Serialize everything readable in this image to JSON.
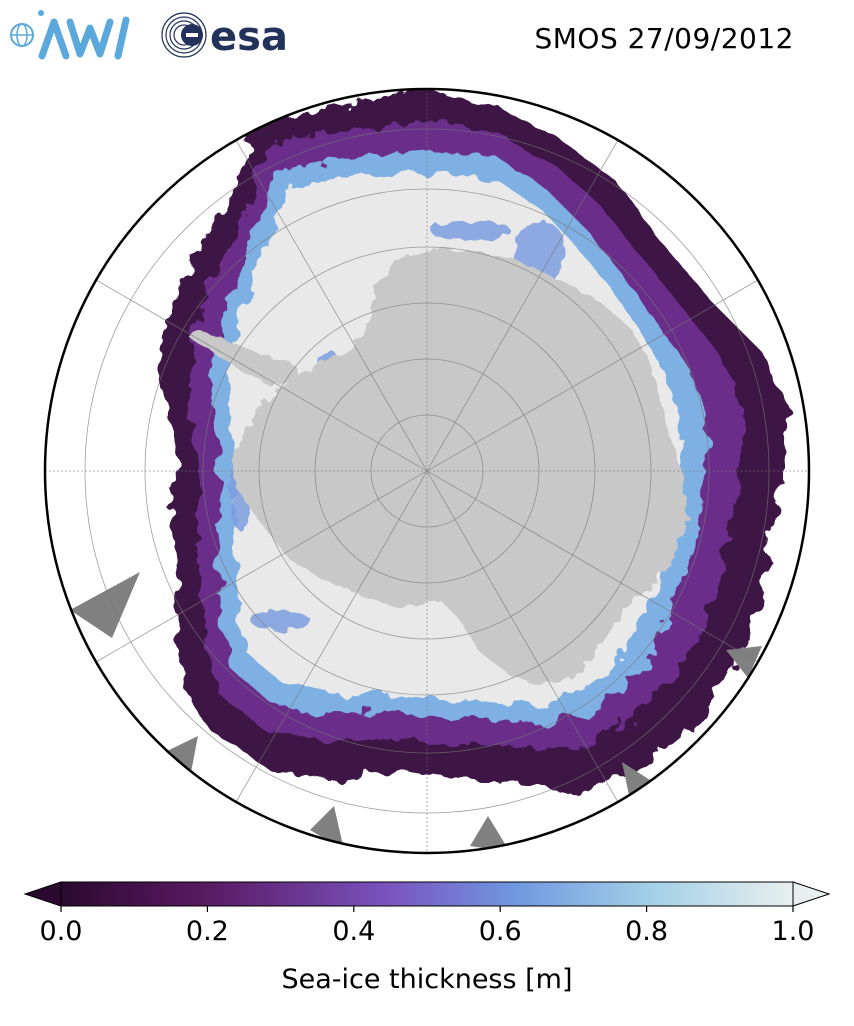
{
  "header": {
    "awi_logo_text": "AWI",
    "esa_logo_text": "esa",
    "date_label": "SMOS 27/09/2012"
  },
  "map": {
    "projection": "south-polar-stereographic",
    "background_color": "#ffffff",
    "land_color": "#c8c8c8",
    "no_data_color": "#808080",
    "graticule_color": "#8a8a8a"
  },
  "colorbar": {
    "title": "Sea-ice thickness [m]",
    "range": [
      0.0,
      1.0
    ],
    "extend": "both",
    "ticks": [
      "0.0",
      "0.2",
      "0.4",
      "0.6",
      "0.8",
      "1.0"
    ],
    "colors": [
      "#2a0a2e",
      "#5a1a63",
      "#7a54c0",
      "#6f98e0",
      "#a0cfe6",
      "#e9efef"
    ]
  }
}
